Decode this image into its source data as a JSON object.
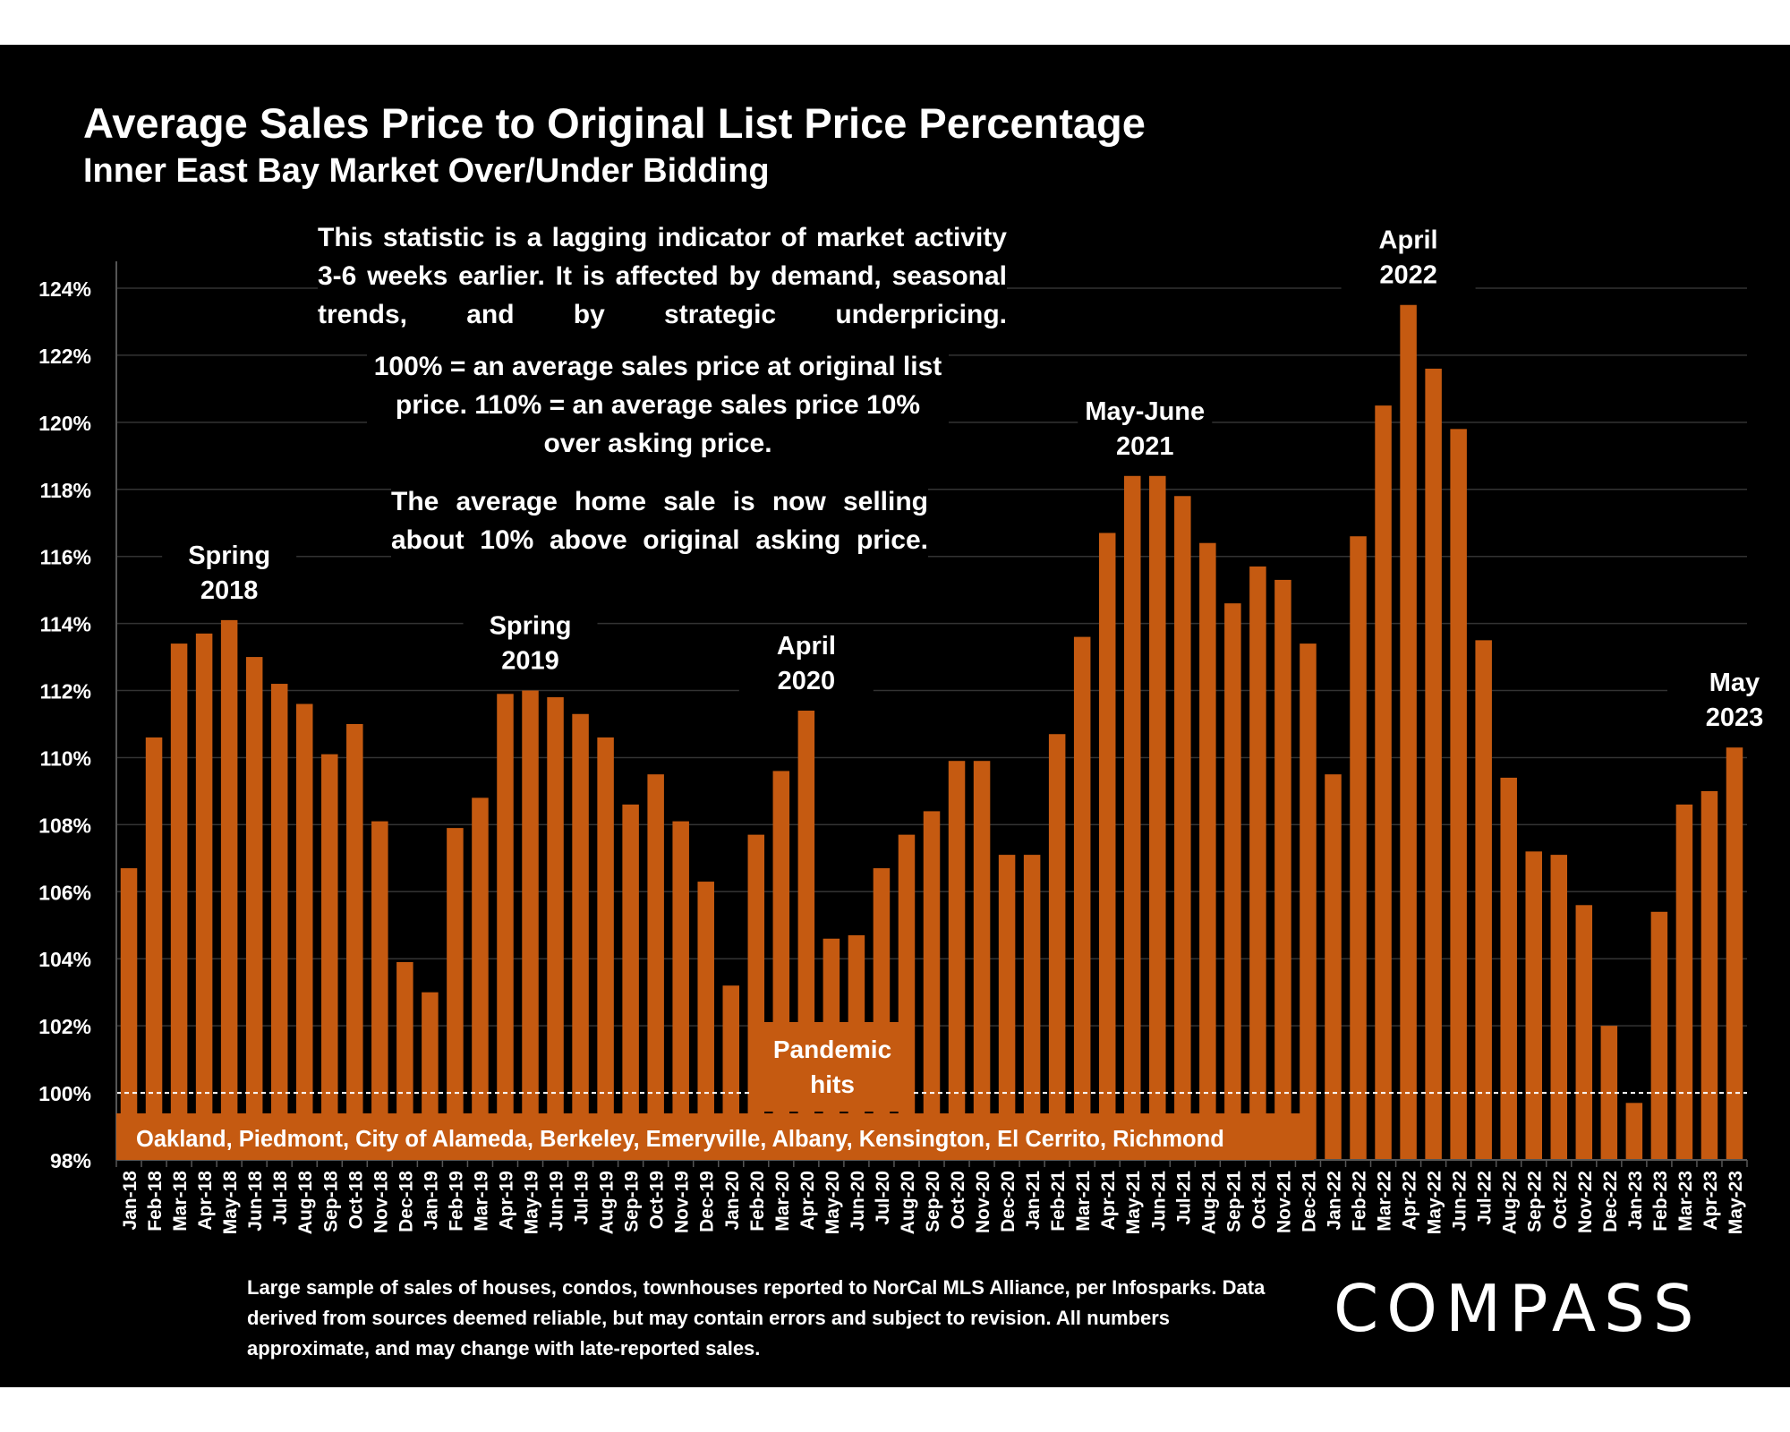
{
  "title": "Average Sales Price to Original List Price Percentage",
  "subtitle": "Inner East Bay Market Over/Under Bidding",
  "notes": {
    "lagging": "This statistic is a lagging indicator of market activity 3-6 weeks earlier. It is affected by demand, seasonal trends, and by strategic underpricing.",
    "definition": "100% = an average sales price at original list price. 110% = an average sales price 10% over asking price.",
    "current": "The average home sale is now selling about 10% above original asking price."
  },
  "footnote": "Large sample of sales of houses, condos, townhouses reported to NorCal MLS Alliance, per Infosparks. Data derived from sources deemed reliable, but may contain errors and subject to revision. All numbers approximate, and may change with late-reported sales.",
  "logo_text": "COMPASS",
  "colors": {
    "bar": "#c55a11",
    "background": "#000000",
    "text": "#ffffff",
    "grid": "#333333",
    "reference_line": "#ffffff"
  },
  "chart_data": {
    "type": "bar",
    "title": "Average Sales Price to Original List Price Percentage",
    "subtitle": "Inner East Bay Market Over/Under Bidding",
    "xlabel": "",
    "ylabel": "",
    "ylim": [
      98,
      124
    ],
    "yticks": [
      "98%",
      "100%",
      "102%",
      "104%",
      "106%",
      "108%",
      "110%",
      "112%",
      "114%",
      "116%",
      "118%",
      "120%",
      "122%",
      "124%"
    ],
    "grid": true,
    "reference_line": 100,
    "categories": [
      "Jan-18",
      "Feb-18",
      "Mar-18",
      "Apr-18",
      "May-18",
      "Jun-18",
      "Jul-18",
      "Aug-18",
      "Sep-18",
      "Oct-18",
      "Nov-18",
      "Dec-18",
      "Jan-19",
      "Feb-19",
      "Mar-19",
      "Apr-19",
      "May-19",
      "Jun-19",
      "Jul-19",
      "Aug-19",
      "Sep-19",
      "Oct-19",
      "Nov-19",
      "Dec-19",
      "Jan-20",
      "Feb-20",
      "Mar-20",
      "Apr-20",
      "May-20",
      "Jun-20",
      "Jul-20",
      "Aug-20",
      "Sep-20",
      "Oct-20",
      "Nov-20",
      "Dec-20",
      "Jan-21",
      "Feb-21",
      "Mar-21",
      "Apr-21",
      "May-21",
      "Jun-21",
      "Jul-21",
      "Aug-21",
      "Sep-21",
      "Oct-21",
      "Nov-21",
      "Dec-21",
      "Jan-22",
      "Feb-22",
      "Mar-22",
      "Apr-22",
      "May-22",
      "Jun-22",
      "Jul-22",
      "Aug-22",
      "Sep-22",
      "Oct-22",
      "Nov-22",
      "Dec-22",
      "Jan-23",
      "Feb-23",
      "Mar-23",
      "Apr-23",
      "May-23"
    ],
    "values": [
      106.7,
      110.6,
      113.4,
      113.7,
      114.1,
      113.0,
      112.2,
      111.6,
      110.1,
      111.0,
      108.1,
      103.9,
      103.0,
      107.9,
      108.8,
      111.9,
      112.0,
      111.8,
      111.3,
      110.6,
      108.6,
      109.5,
      108.1,
      106.3,
      103.2,
      107.7,
      109.6,
      111.4,
      104.6,
      104.7,
      106.7,
      107.7,
      108.4,
      109.9,
      109.9,
      107.1,
      107.1,
      110.7,
      113.6,
      116.7,
      118.4,
      118.4,
      117.8,
      116.4,
      114.6,
      115.7,
      115.3,
      113.4,
      109.5,
      116.6,
      120.5,
      123.5,
      121.6,
      119.8,
      113.5,
      109.4,
      107.2,
      107.1,
      105.6,
      102.0,
      99.7,
      105.4,
      108.6,
      109.0,
      110.3
    ],
    "annotations": [
      {
        "text": [
          "Spring",
          "2018"
        ],
        "index": 4
      },
      {
        "text": [
          "Spring",
          "2019"
        ],
        "index": 16
      },
      {
        "text": [
          "April",
          "2020"
        ],
        "index": 27
      },
      {
        "text": [
          "May-June",
          "2021"
        ],
        "index": 40.5
      },
      {
        "text": [
          "April",
          "2022"
        ],
        "index": 51
      },
      {
        "text": [
          "May",
          "2023"
        ],
        "index": 64
      }
    ],
    "pandemic_label": [
      "Pandemic",
      "hits"
    ],
    "region_label": "Oakland, Piedmont, City of Alameda, Berkeley, Emeryville, Albany, Kensington, El Cerrito, Richmond"
  }
}
